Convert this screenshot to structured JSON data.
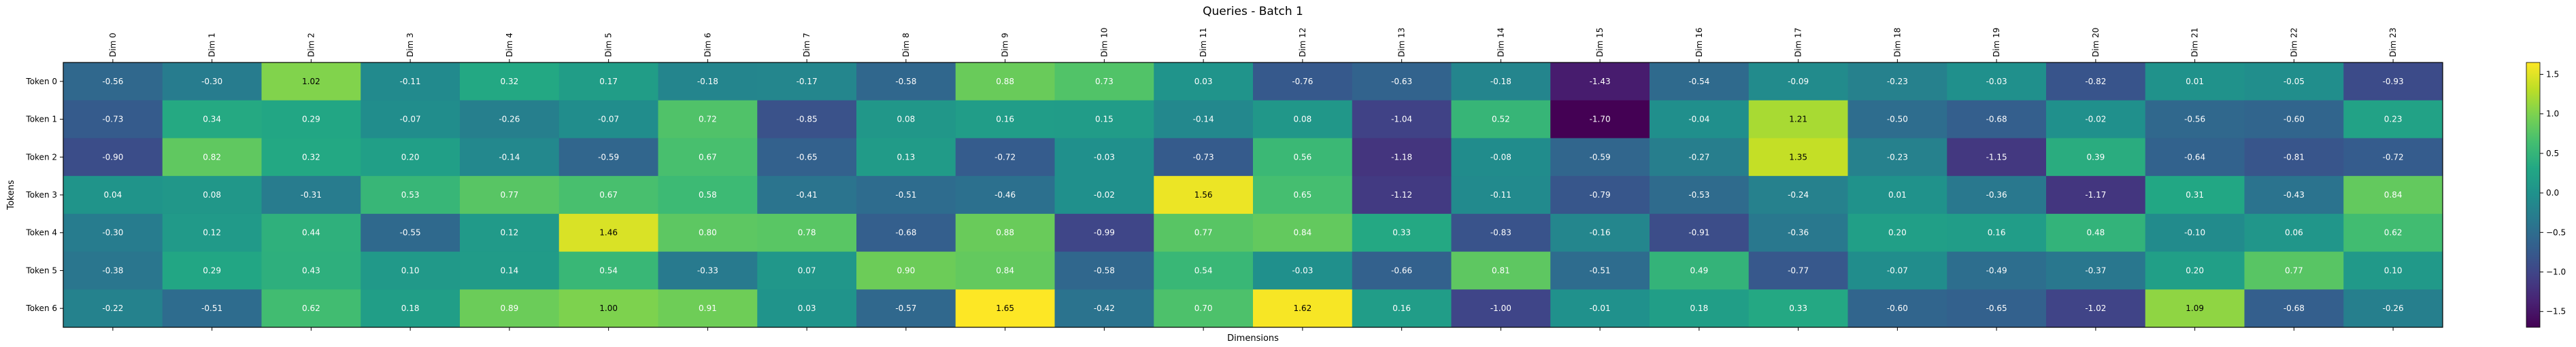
{
  "chart_data": {
    "type": "heatmap",
    "title": "Queries - Batch 1",
    "xlabel": "Dimensions",
    "ylabel": "Tokens",
    "columns": [
      "Dim 0",
      "Dim 1",
      "Dim 2",
      "Dim 3",
      "Dim 4",
      "Dim 5",
      "Dim 6",
      "Dim 7",
      "Dim 8",
      "Dim 9",
      "Dim 10",
      "Dim 11",
      "Dim 12",
      "Dim 13",
      "Dim 14",
      "Dim 15",
      "Dim 16",
      "Dim 17",
      "Dim 18",
      "Dim 19",
      "Dim 20",
      "Dim 21",
      "Dim 22",
      "Dim 23"
    ],
    "rows": [
      "Token 0",
      "Token 1",
      "Token 2",
      "Token 3",
      "Token 4",
      "Token 5",
      "Token 6"
    ],
    "values": [
      [
        -0.56,
        -0.3,
        1.02,
        -0.11,
        0.32,
        0.17,
        -0.18,
        -0.17,
        -0.58,
        0.88,
        0.73,
        0.03,
        -0.76,
        -0.63,
        -0.18,
        -1.43,
        -0.54,
        -0.09,
        -0.23,
        -0.03,
        -0.82,
        0.01,
        -0.05,
        -0.93
      ],
      [
        -0.73,
        0.34,
        0.29,
        -0.07,
        -0.26,
        -0.07,
        0.72,
        -0.85,
        0.08,
        0.16,
        0.15,
        -0.14,
        0.08,
        -1.04,
        0.52,
        -1.7,
        -0.04,
        1.21,
        -0.5,
        -0.68,
        -0.02,
        -0.56,
        -0.6,
        0.23
      ],
      [
        -0.9,
        0.82,
        0.32,
        0.2,
        -0.14,
        -0.59,
        0.67,
        -0.65,
        0.13,
        -0.72,
        -0.03,
        -0.73,
        0.56,
        -1.18,
        -0.08,
        -0.59,
        -0.27,
        1.35,
        -0.23,
        -1.15,
        0.39,
        -0.64,
        -0.81,
        -0.72
      ],
      [
        0.04,
        0.08,
        -0.31,
        0.53,
        0.77,
        0.67,
        0.58,
        -0.41,
        -0.51,
        -0.46,
        -0.02,
        1.56,
        0.65,
        -1.12,
        -0.11,
        -0.79,
        -0.53,
        -0.24,
        0.01,
        -0.36,
        -1.17,
        0.31,
        -0.43,
        0.84
      ],
      [
        -0.3,
        0.12,
        0.44,
        -0.55,
        0.12,
        1.46,
        0.8,
        0.78,
        -0.68,
        0.88,
        -0.99,
        0.77,
        0.84,
        0.33,
        -0.83,
        -0.16,
        -0.91,
        -0.36,
        0.2,
        0.16,
        0.48,
        -0.1,
        0.06,
        0.62
      ],
      [
        -0.38,
        0.29,
        0.43,
        0.1,
        0.14,
        0.54,
        -0.33,
        0.07,
        0.9,
        0.84,
        -0.58,
        0.54,
        -0.03,
        -0.66,
        0.81,
        -0.51,
        0.49,
        -0.77,
        -0.07,
        -0.49,
        -0.37,
        0.2,
        0.77,
        0.1
      ],
      [
        -0.22,
        -0.51,
        0.62,
        0.18,
        0.89,
        1.0,
        0.91,
        0.03,
        -0.57,
        1.65,
        -0.42,
        0.7,
        1.62,
        0.16,
        -1.0,
        -0.01,
        0.18,
        0.33,
        -0.6,
        -0.65,
        -1.02,
        1.09,
        -0.68,
        -0.26
      ]
    ],
    "colormap": "viridis",
    "vmin": -1.7,
    "vmax": 1.65,
    "colorbar_ticks": [
      "1.5",
      "1.0",
      "0.5",
      "0.0",
      "−0.5",
      "−1.0",
      "−1.5"
    ],
    "colorbar_tick_values": [
      1.5,
      1.0,
      0.5,
      0.0,
      -0.5,
      -1.0,
      -1.5
    ],
    "grid": false,
    "legend": "colorbar-right"
  }
}
